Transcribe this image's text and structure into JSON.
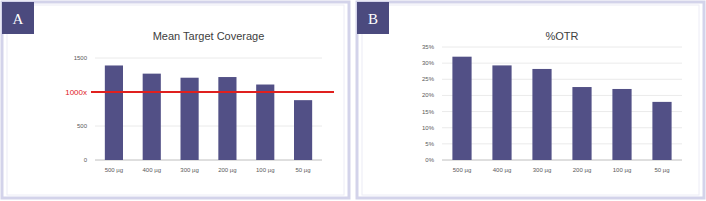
{
  "chart_data": [
    {
      "type": "bar",
      "panel_label": "A",
      "title": "Mean Target Coverage",
      "categories": [
        "500 µg",
        "400 µg",
        "300 µg",
        "200 µg",
        "100 µg",
        "50 µg"
      ],
      "values": [
        1390,
        1270,
        1210,
        1220,
        1110,
        880
      ],
      "color": "#525086",
      "ylim": [
        0,
        1500
      ],
      "yticks": [
        0,
        500,
        1500
      ],
      "grid": true,
      "reference_line": {
        "value": 1000,
        "label": "1000x"
      }
    },
    {
      "type": "bar",
      "panel_label": "B",
      "title": "%OTR",
      "categories": [
        "500 µg",
        "400 µg",
        "300 µg",
        "200 µg",
        "100 µg",
        "50 µg"
      ],
      "values": [
        32,
        29.3,
        28.2,
        22.6,
        22,
        18
      ],
      "color": "#525086",
      "ylim": [
        0,
        35
      ],
      "yticks": [
        {
          "value": 0,
          "label": "0%"
        },
        {
          "value": 5,
          "label": "5%"
        },
        {
          "value": 10,
          "label": "10%"
        },
        {
          "value": 15,
          "label": "15%"
        },
        {
          "value": 20,
          "label": "20%"
        },
        {
          "value": 25,
          "label": "25%"
        },
        {
          "value": 30,
          "label": "30%"
        },
        {
          "value": 35,
          "label": "35%"
        }
      ],
      "grid": true
    }
  ]
}
